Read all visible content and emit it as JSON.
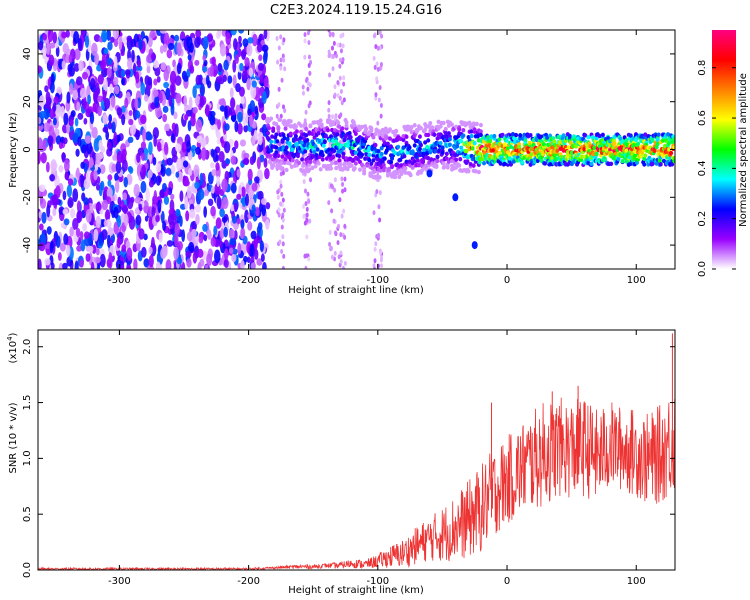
{
  "title": "C2E3.2024.119.15.24.G16",
  "chart_data": [
    {
      "type": "heatmap",
      "xlabel": "Height of straight line (km)",
      "ylabel": "Frequency (Hz)",
      "xlim": [
        -363,
        130
      ],
      "ylim": [
        -50,
        50
      ],
      "xticks": [
        -300,
        -200,
        -100,
        0,
        100
      ],
      "yticks": [
        -40,
        -20,
        0,
        20,
        40
      ],
      "colorbar": {
        "label": "Normalized spectral amplitude",
        "range": [
          0,
          0.95
        ],
        "ticks": [
          "0.0",
          "0.2",
          "0.4",
          "0.6",
          "0.8"
        ],
        "tick_values": [
          0,
          0.2,
          0.4,
          0.6,
          0.8
        ],
        "colormap": [
          "#ffffff",
          "#9900ff",
          "#0000ff",
          "#00ffff",
          "#00ff00",
          "#ffff00",
          "#ff8000",
          "#ff0000",
          "#ff0080"
        ]
      },
      "noise_region_km": [
        -363,
        -185
      ],
      "signal_track": [
        {
          "x": -185,
          "y": 3,
          "amp": 0.35
        },
        {
          "x": -160,
          "y": 1,
          "amp": 0.35
        },
        {
          "x": -140,
          "y": 2,
          "amp": 0.4
        },
        {
          "x": -120,
          "y": 2,
          "amp": 0.4
        },
        {
          "x": -100,
          "y": -2,
          "amp": 0.35
        },
        {
          "x": -80,
          "y": -1,
          "amp": 0.35
        },
        {
          "x": -60,
          "y": 1,
          "amp": 0.35
        },
        {
          "x": -40,
          "y": 2,
          "amp": 0.35
        },
        {
          "x": -20,
          "y": 0,
          "amp": 0.9
        },
        {
          "x": 0,
          "y": 0,
          "amp": 0.75
        },
        {
          "x": 40,
          "y": 0,
          "amp": 0.85
        },
        {
          "x": 80,
          "y": 0,
          "amp": 0.8
        },
        {
          "x": 130,
          "y": 0,
          "amp": 0.85
        }
      ],
      "side_branch": [
        {
          "x": -60,
          "y": -10
        },
        {
          "x": -40,
          "y": -20
        },
        {
          "x": -25,
          "y": -40
        }
      ]
    },
    {
      "type": "line",
      "xlabel": "Height of straight line (km)",
      "ylabel": "SNR (10 * v/v)",
      "yscale_label": "(x10",
      "yscale_exp": "4",
      "yscale_close": ")",
      "xlim": [
        -363,
        130
      ],
      "ylim": [
        0,
        2.15
      ],
      "xticks": [
        -300,
        -200,
        -100,
        0,
        100
      ],
      "yticks": [
        "0.0",
        "0.5",
        "1.0",
        "1.5",
        "2.0"
      ],
      "ytick_values": [
        0,
        0.5,
        1.0,
        1.5,
        2.0
      ],
      "color": "#ee3333",
      "series": [
        {
          "x": [
            -363,
            -300,
            -250,
            -200,
            -180,
            -160,
            -150,
            -140,
            -130,
            -120,
            -110,
            -100,
            -90,
            -80,
            -70,
            -60,
            -50,
            -40,
            -30,
            -20,
            -10,
            0,
            10,
            20,
            30,
            40,
            50,
            60,
            70,
            80,
            90,
            100,
            110,
            120,
            130
          ],
          "y": [
            0.01,
            0.01,
            0.01,
            0.01,
            0.02,
            0.03,
            0.03,
            0.04,
            0.04,
            0.06,
            0.05,
            0.08,
            0.12,
            0.15,
            0.22,
            0.28,
            0.32,
            0.38,
            0.45,
            0.55,
            0.7,
            0.8,
            0.9,
            0.98,
            1.05,
            1.1,
            1.08,
            1.1,
            1.02,
            1.12,
            1.08,
            1.05,
            0.98,
            1.05,
            1.2
          ],
          "spread": [
            0.01,
            0.01,
            0.01,
            0.01,
            0.01,
            0.02,
            0.02,
            0.02,
            0.03,
            0.04,
            0.04,
            0.06,
            0.1,
            0.13,
            0.17,
            0.2,
            0.25,
            0.3,
            0.35,
            0.4,
            0.4,
            0.4,
            0.42,
            0.45,
            0.48,
            0.45,
            0.45,
            0.45,
            0.42,
            0.4,
            0.38,
            0.4,
            0.42,
            0.45,
            0.5
          ]
        }
      ],
      "peaks": [
        {
          "x": -12,
          "y": 1.5
        },
        {
          "x": 35,
          "y": 1.6
        },
        {
          "x": 55,
          "y": 1.65
        },
        {
          "x": 128,
          "y": 2.12
        }
      ]
    }
  ]
}
